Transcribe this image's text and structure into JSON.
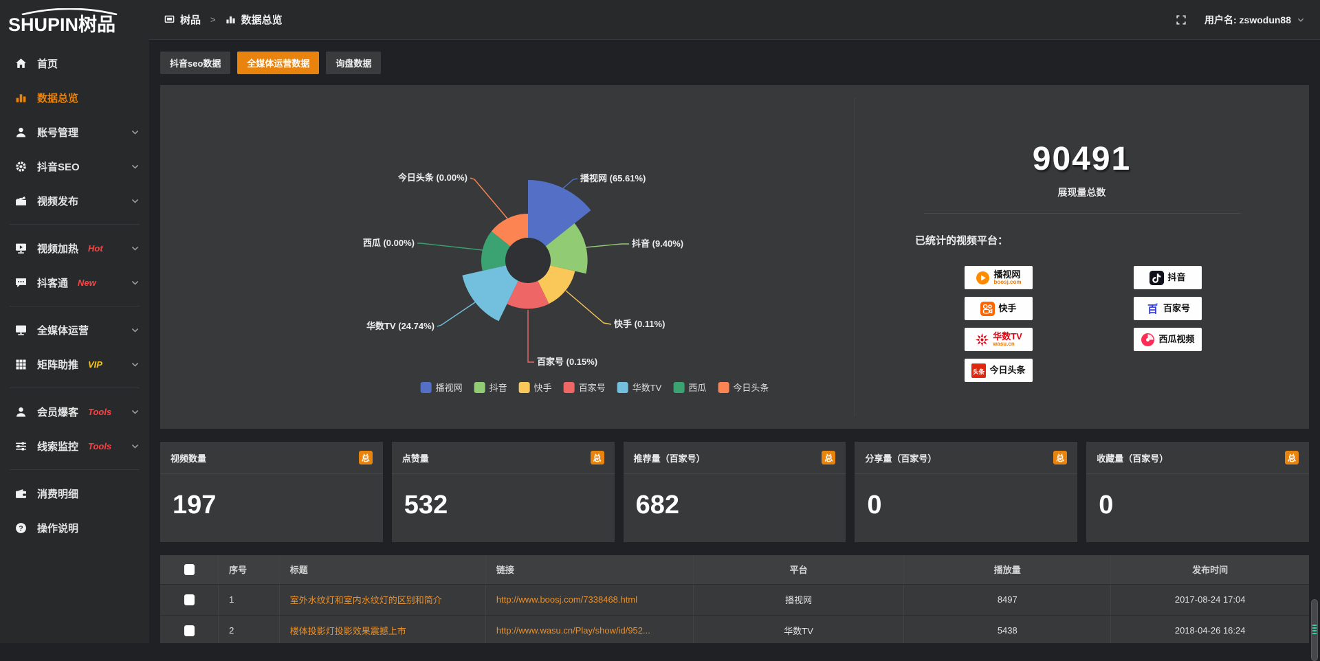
{
  "colors": {
    "accent": "#e8830e",
    "panel": "#38393b",
    "link_orange": "#e8912d"
  },
  "logo": {
    "en": "SHUPIN",
    "cn": "树品"
  },
  "topbar": {
    "breadcrumb_root": "树品",
    "breadcrumb_sep": ">",
    "breadcrumb_current": "数据总览",
    "username": "用户名: zswodun88"
  },
  "sidebar": {
    "items": [
      {
        "icon": "home",
        "label": "首页"
      },
      {
        "icon": "chart",
        "label": "数据总览",
        "active": true
      },
      {
        "icon": "user",
        "label": "账号管理",
        "chevron": true
      },
      {
        "icon": "gear",
        "label": "抖音SEO",
        "chevron": true
      },
      {
        "icon": "publish",
        "label": "视频发布",
        "chevron": true,
        "divider_after": true
      },
      {
        "icon": "monitor-play",
        "label": "视频加热",
        "tag": "Hot",
        "tag_color": "#ff4040",
        "chevron": true
      },
      {
        "icon": "chat",
        "label": "抖客通",
        "tag": "New",
        "tag_color": "#ff4040",
        "chevron": true,
        "divider_after": true
      },
      {
        "icon": "monitor",
        "label": "全媒体运营",
        "chevron": true
      },
      {
        "icon": "grid",
        "label": "矩阵助推",
        "tag": "VIP",
        "tag_color": "#f5c51d",
        "chevron": true,
        "divider_after": true
      },
      {
        "icon": "user",
        "label": "会员爆客",
        "tag": "Tools",
        "tag_color": "#ff4040",
        "chevron": true
      },
      {
        "icon": "sliders",
        "label": "线索监控",
        "tag": "Tools",
        "tag_color": "#ff4040",
        "chevron": true,
        "divider_after": true
      },
      {
        "icon": "wallet",
        "label": "消费明细"
      },
      {
        "icon": "help",
        "label": "操作说明"
      }
    ]
  },
  "tabs": [
    {
      "label": "抖音seo数据",
      "active": false
    },
    {
      "label": "全媒体运营数据",
      "active": true
    },
    {
      "label": "询盘数据",
      "active": false
    }
  ],
  "chart_data": {
    "type": "pie",
    "subtype": "nightingale-rose",
    "label_format": "{name} ({value}%)",
    "legend_position": "bottom",
    "items": [
      {
        "name": "播视网",
        "pct": 65.61,
        "color": "#5470c6"
      },
      {
        "name": "抖音",
        "pct": 9.4,
        "color": "#91cc75"
      },
      {
        "name": "快手",
        "pct": 0.11,
        "color": "#fac858"
      },
      {
        "name": "百家号",
        "pct": 0.15,
        "color": "#ee6666"
      },
      {
        "name": "华数TV",
        "pct": 24.74,
        "color": "#73c0de"
      },
      {
        "name": "西瓜",
        "pct": 0.0,
        "color": "#3ba272"
      },
      {
        "name": "今日头条",
        "pct": 0.0,
        "color": "#fc8452"
      }
    ]
  },
  "summary": {
    "total": "90491",
    "total_label": "展现量总数",
    "platforms_title": "已统计的视频平台：",
    "platforms_left": [
      {
        "name": "播视网",
        "sub": "boosj.com",
        "logo": "boosj"
      },
      {
        "name": "快手",
        "logo": "kuaishou"
      },
      {
        "name": "华数TV",
        "sub": "wasu.cn",
        "logo": "wasu",
        "name_color": "#e60012"
      },
      {
        "name": "今日头条",
        "logo": "toutiao"
      }
    ],
    "platforms_right": [
      {
        "name": "抖音",
        "logo": "douyin"
      },
      {
        "name": "百家号",
        "logo": "baijia"
      },
      {
        "name": "西瓜视频",
        "logo": "xigua"
      }
    ]
  },
  "stat_cards": [
    {
      "title": "视频数量",
      "badge": "总",
      "value": "197"
    },
    {
      "title": "点赞量",
      "badge": "总",
      "value": "532"
    },
    {
      "title": "推荐量（百家号）",
      "badge": "总",
      "value": "682"
    },
    {
      "title": "分享量（百家号）",
      "badge": "总",
      "value": "0"
    },
    {
      "title": "收藏量（百家号）",
      "badge": "总",
      "value": "0"
    }
  ],
  "table": {
    "headers": [
      "序号",
      "标题",
      "链接",
      "平台",
      "播放量",
      "发布时间"
    ],
    "rows": [
      {
        "index": "1",
        "title": "室外水纹灯和室内水纹灯的区别和简介",
        "link": "http://www.boosj.com/7338468.html",
        "platform": "播视网",
        "views": "8497",
        "time": "2017-08-24 17:04"
      },
      {
        "index": "2",
        "title": "楼体投影灯投影效果震撼上市",
        "link": "http://www.wasu.cn/Play/show/id/952...",
        "platform": "华数TV",
        "views": "5438",
        "time": "2018-04-26 16:24"
      }
    ]
  }
}
